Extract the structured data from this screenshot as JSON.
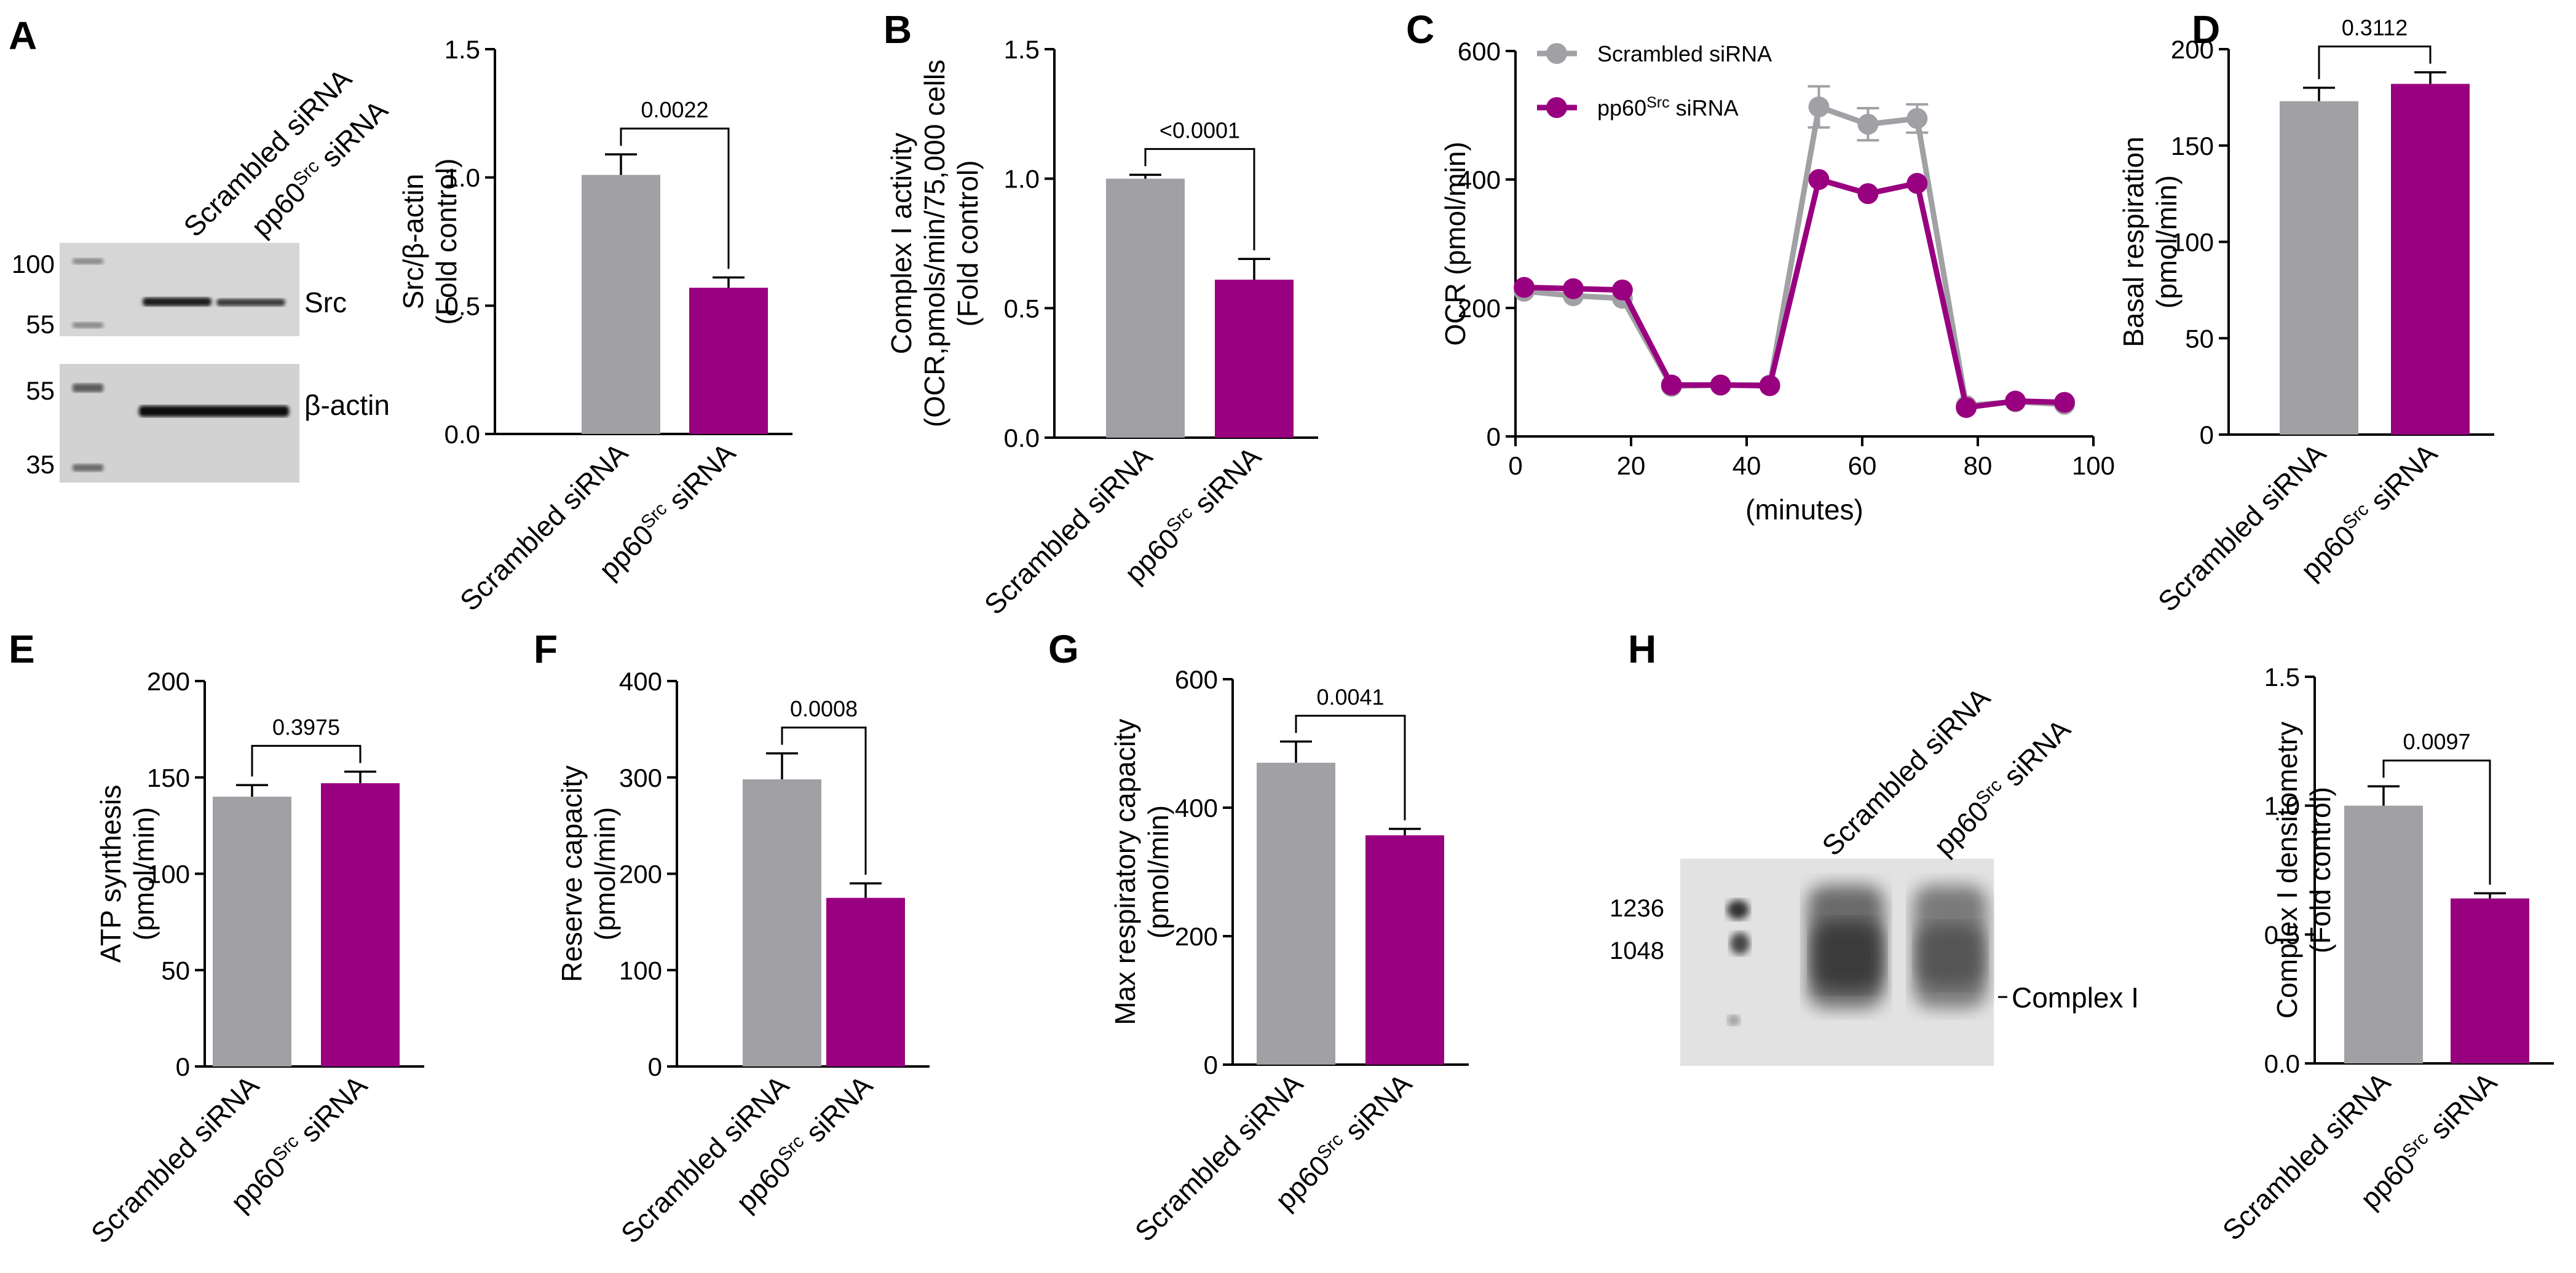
{
  "panels": {
    "A": "A",
    "B": "B",
    "C": "C",
    "D": "D",
    "E": "E",
    "F": "F",
    "G": "G",
    "H": "H"
  },
  "colors": {
    "scrambled": "#a1a1a5",
    "pp60": "#990080",
    "blot_bg": "#d4d4d4"
  },
  "group_labels": {
    "scrambled": "Scrambled siRNA",
    "pp60_base": "pp60",
    "pp60_sup": "Src",
    "pp60_tail": " siRNA"
  },
  "blotA": {
    "markers_top": [
      "100",
      "55"
    ],
    "markers_bottom": [
      "55",
      "35"
    ],
    "band1": "Src",
    "band2": "β-actin"
  },
  "blotH": {
    "markers": [
      "1236",
      "1048"
    ],
    "band": "Complex I"
  },
  "chart_data": [
    {
      "panel": "A",
      "type": "bar",
      "categories": [
        "Scrambled siRNA",
        "pp60Src siRNA"
      ],
      "values": [
        1.01,
        0.57
      ],
      "errors": [
        0.08,
        0.04
      ],
      "ylabel_lines": [
        "Src/β-actin",
        "(Fold control)"
      ],
      "ylim": [
        0,
        1.5
      ],
      "yticks": [
        "0.0",
        "0.5",
        "1.0",
        "1.5"
      ],
      "pvalue": "0.0022"
    },
    {
      "panel": "B",
      "type": "bar",
      "categories": [
        "Scrambled siRNA",
        "pp60Src siRNA"
      ],
      "values": [
        1.0,
        0.61
      ],
      "errors": [
        0.015,
        0.08
      ],
      "ylabel_lines": [
        "Complex I activity",
        "(OCR,pmols/min/75,000 cells",
        "(Fold control)"
      ],
      "ylim": [
        0,
        1.5
      ],
      "yticks": [
        "0.0",
        "0.5",
        "1.0",
        "1.5"
      ],
      "pvalue": "<0.0001"
    },
    {
      "panel": "C",
      "type": "line",
      "xlabel": "(minutes)",
      "ylabel": "OCR (pmol/min)",
      "xlim": [
        0,
        100
      ],
      "ylim": [
        0,
        600
      ],
      "xticks": [
        "0",
        "20",
        "40",
        "60",
        "80",
        "100"
      ],
      "yticks": [
        "0",
        "200",
        "400",
        "600"
      ],
      "x": [
        1.5,
        10,
        18.5,
        27,
        35.5,
        44,
        52.5,
        61,
        69.5,
        78,
        86.5,
        95
      ],
      "series": [
        {
          "name": "Scrambled siRNA",
          "values": [
            226,
            219,
            215,
            78,
            80,
            80,
            513,
            486,
            495,
            48,
            54,
            50
          ],
          "errors": [
            0,
            0,
            0,
            0,
            0,
            0,
            32,
            25,
            22,
            0,
            0,
            0
          ]
        },
        {
          "name": "pp60Src siRNA",
          "values": [
            232,
            230,
            228,
            80,
            80,
            79,
            400,
            378,
            394,
            45,
            55,
            53
          ],
          "errors": [
            0,
            0,
            0,
            0,
            0,
            0,
            0,
            0,
            0,
            0,
            0,
            0
          ]
        }
      ],
      "legend": "top-left"
    },
    {
      "panel": "D",
      "type": "bar",
      "categories": [
        "Scrambled siRNA",
        "pp60Src siRNA"
      ],
      "values": [
        173,
        182
      ],
      "errors": [
        7,
        6
      ],
      "ylabel_lines": [
        "Basal respiration",
        "(pmol/min)"
      ],
      "ylim": [
        0,
        200
      ],
      "yticks": [
        "0",
        "50",
        "100",
        "150",
        "200"
      ],
      "pvalue": "0.3112"
    },
    {
      "panel": "E",
      "type": "bar",
      "categories": [
        "Scrambled siRNA",
        "pp60Src siRNA"
      ],
      "values": [
        140,
        147
      ],
      "errors": [
        6,
        6
      ],
      "ylabel_lines": [
        "ATP synthesis",
        "(pmol/min)"
      ],
      "ylim": [
        0,
        200
      ],
      "yticks": [
        "0",
        "50",
        "100",
        "150",
        "200"
      ],
      "pvalue": "0.3975"
    },
    {
      "panel": "F",
      "type": "bar",
      "categories": [
        "Scrambled siRNA",
        "pp60Src siRNA"
      ],
      "values": [
        298,
        175
      ],
      "errors": [
        27,
        15
      ],
      "ylabel_lines": [
        "Reserve capacity",
        "(pmol/min)"
      ],
      "ylim": [
        0,
        400
      ],
      "yticks": [
        "0",
        "100",
        "200",
        "300",
        "400"
      ],
      "pvalue": "0.0008"
    },
    {
      "panel": "G",
      "type": "bar",
      "categories": [
        "Scrambled siRNA",
        "pp60Src siRNA"
      ],
      "values": [
        470,
        357
      ],
      "errors": [
        33,
        10
      ],
      "ylabel_lines": [
        "Max respiratory capacity",
        "(pmol/min)"
      ],
      "ylim": [
        0,
        600
      ],
      "yticks": [
        "0",
        "200",
        "400",
        "600"
      ],
      "pvalue": "0.0041"
    },
    {
      "panel": "H",
      "type": "bar",
      "categories": [
        "Scrambled siRNA",
        "pp60Src siRNA"
      ],
      "values": [
        1.0,
        0.64
      ],
      "errors": [
        0.075,
        0.02
      ],
      "ylabel_lines": [
        "Complex I densitometry",
        "(Fold control)"
      ],
      "ylim": [
        0,
        1.5
      ],
      "yticks": [
        "0.0",
        "0.5",
        "1.0",
        "1.5"
      ],
      "pvalue": "0.0097"
    }
  ]
}
